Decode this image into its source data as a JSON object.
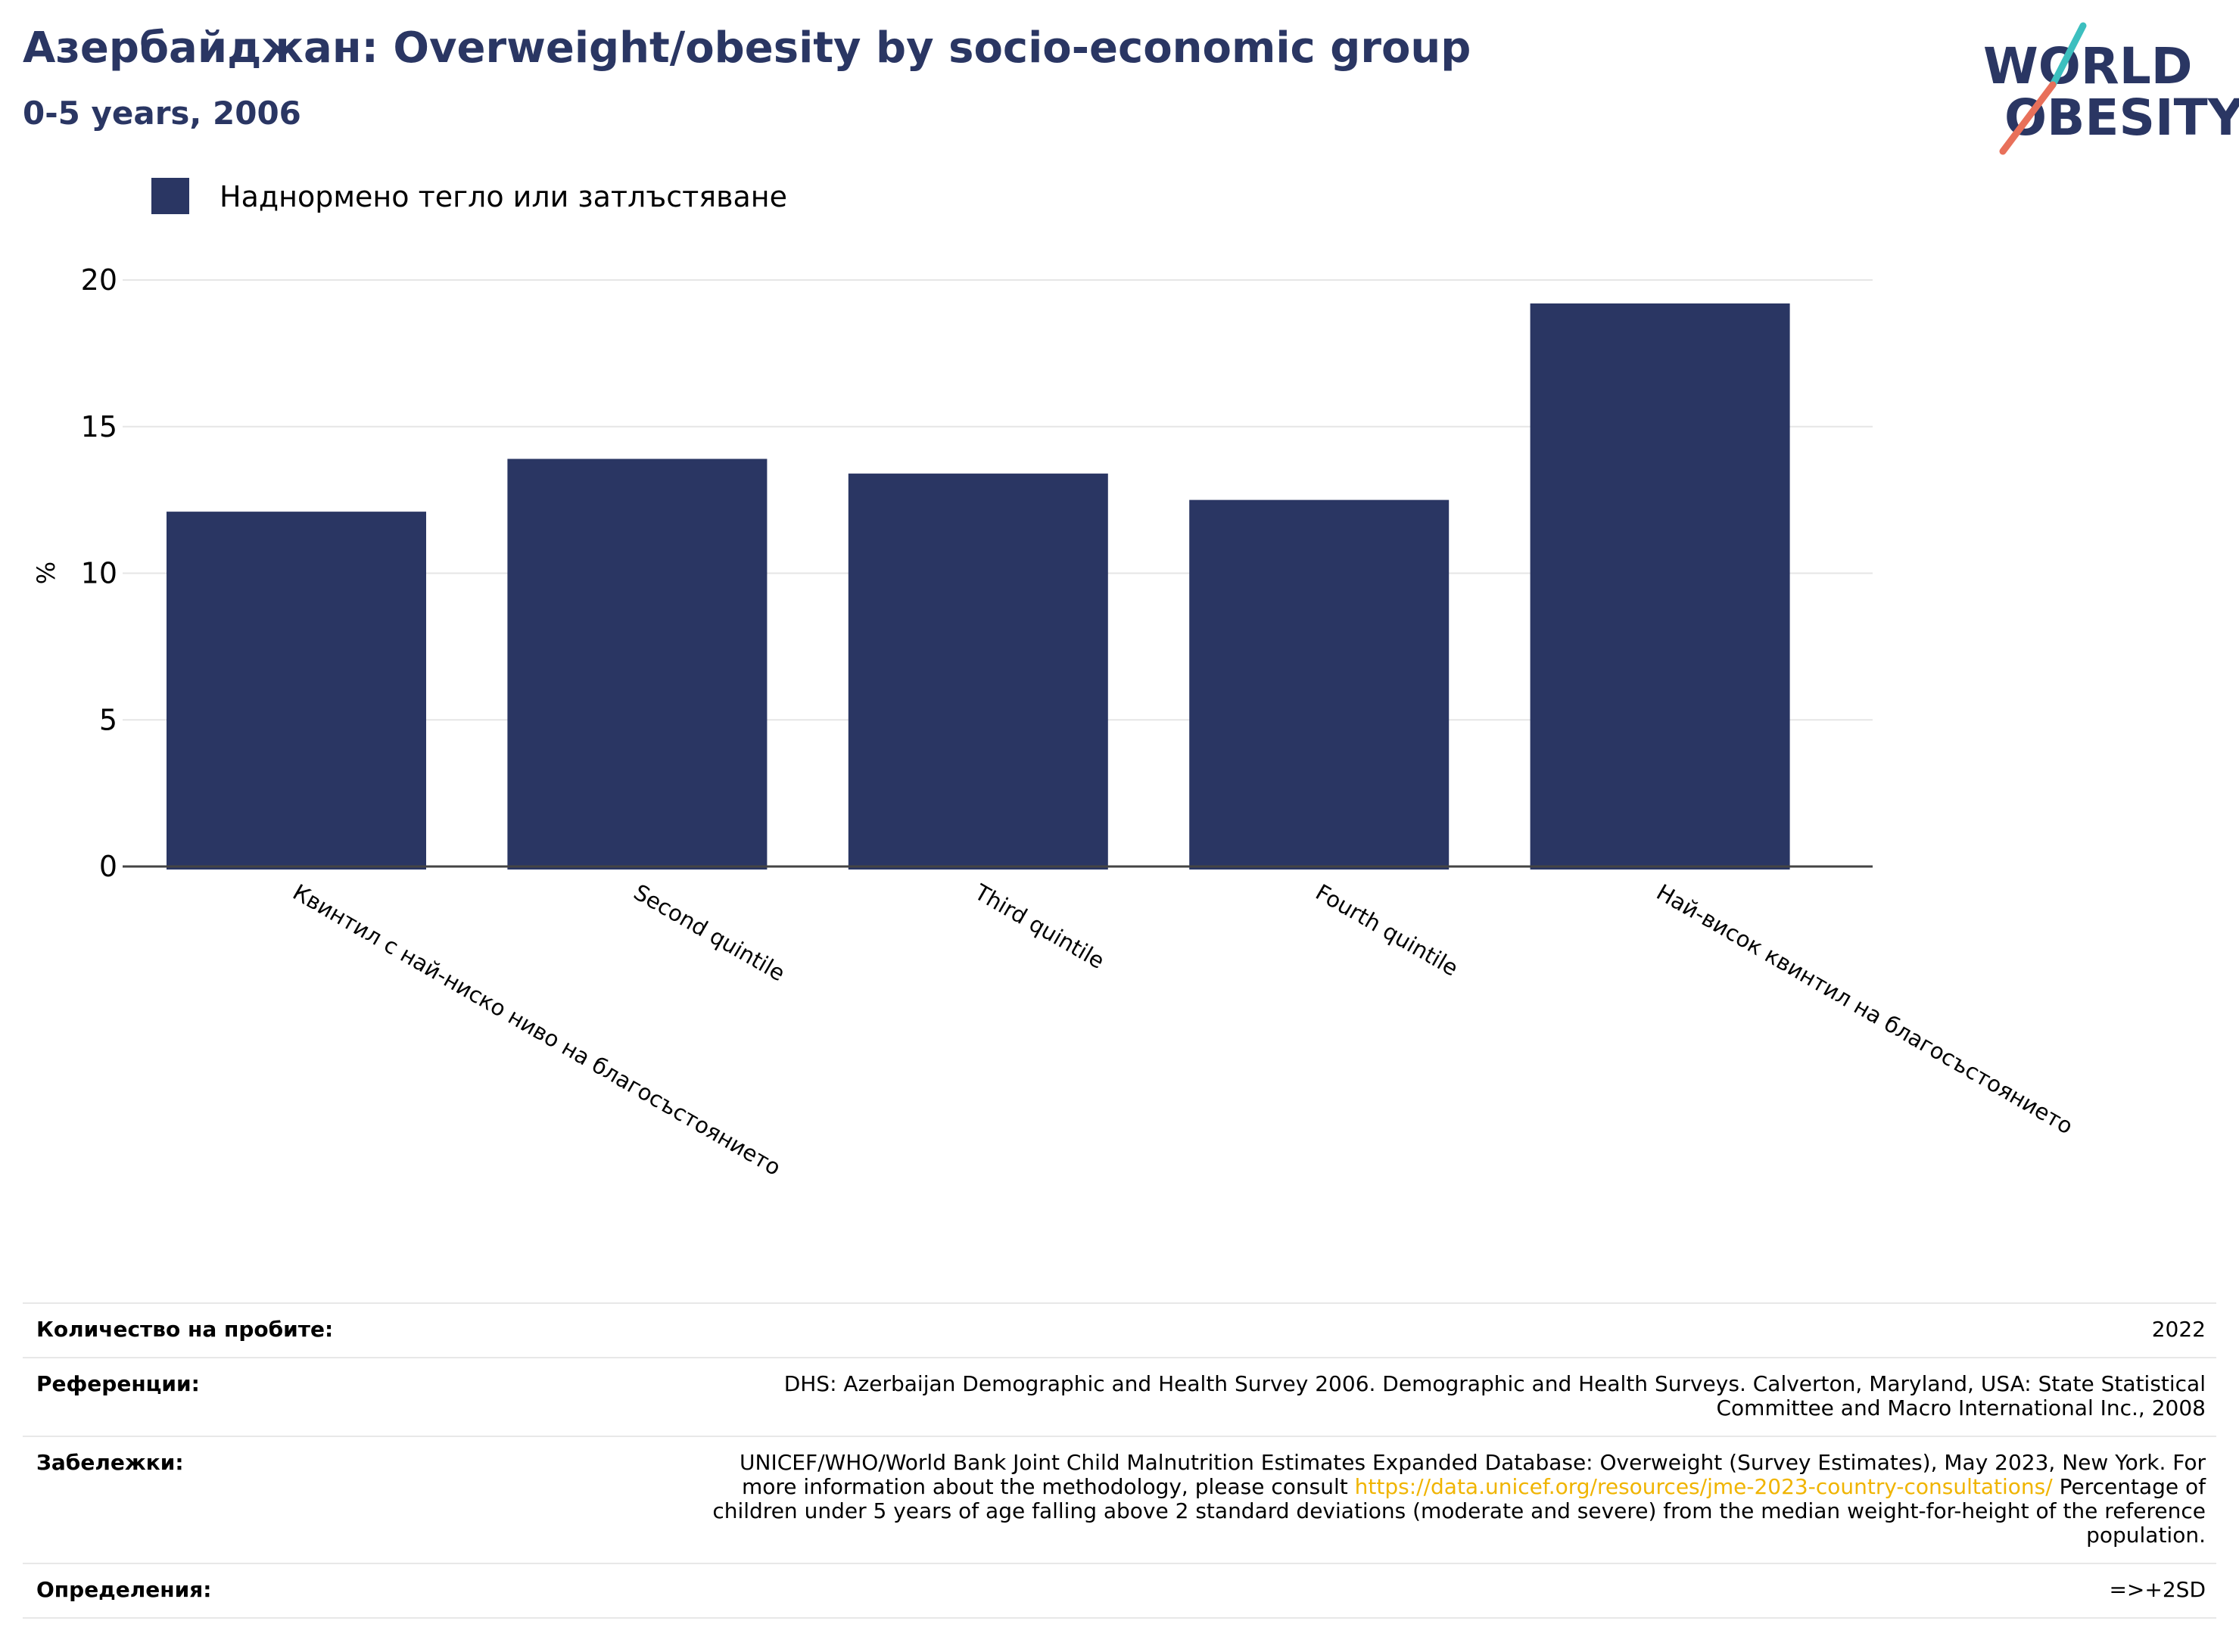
{
  "header": {
    "title": "Азербайджан: Overweight/obesity by socio-economic group",
    "subtitle": "0-5 years, 2006"
  },
  "logo": {
    "line1": "WORLD",
    "line2": "OBESITY",
    "colors": {
      "text": "#2a3663",
      "slash_top": "#3cbfbf",
      "slash_bottom": "#e8705a"
    }
  },
  "legend": {
    "label": "Наднормено тегло или затлъстяване",
    "color": "#2a3663"
  },
  "chart_data": {
    "type": "bar",
    "categories": [
      "Квинтил с най-ниско ниво на благосъстоянието",
      "Second quintile",
      "Third quintile",
      "Fourth quintile",
      "Най-висок квинтил на благосъстоянието"
    ],
    "series": [
      {
        "name": "Наднормено тегло или затлъстяване",
        "values": [
          12.1,
          13.9,
          13.4,
          12.5,
          19.2
        ]
      }
    ],
    "ylabel": "%",
    "ylim": [
      0,
      20
    ],
    "yticks": [
      0,
      5,
      10,
      15,
      20
    ],
    "grid": true,
    "legend_position": "top-left",
    "bar_color": "#2a3663"
  },
  "footer": {
    "rows": [
      {
        "key": "Количество на пробите:",
        "lines": [
          "2022"
        ]
      },
      {
        "key": "Референции:",
        "lines": [
          "DHS: Azerbaijan Demographic and Health Survey 2006. Demographic and Health Surveys. Calverton, Maryland, USA: State Statistical",
          "Committee and Macro International Inc., 2008"
        ]
      },
      {
        "key": "Забележки:",
        "lines": [
          "UNICEF/WHO/World Bank Joint Child Malnutrition Estimates Expanded Database: Overweight (Survey Estimates), May 2023, New York. For"
        ],
        "line2_pre": "more information about the methodology, please consult ",
        "line2_link": "https://data.unicef.org/resources/jme-2023-country-consultations/",
        "line2_post": " Percentage of",
        "lines_after": [
          "children under 5 years of age falling above 2 standard deviations (moderate and severe) from the median weight-for-height of the reference",
          "population."
        ]
      },
      {
        "key": "Определения:",
        "lines": [
          "=>+2SD"
        ]
      }
    ]
  }
}
